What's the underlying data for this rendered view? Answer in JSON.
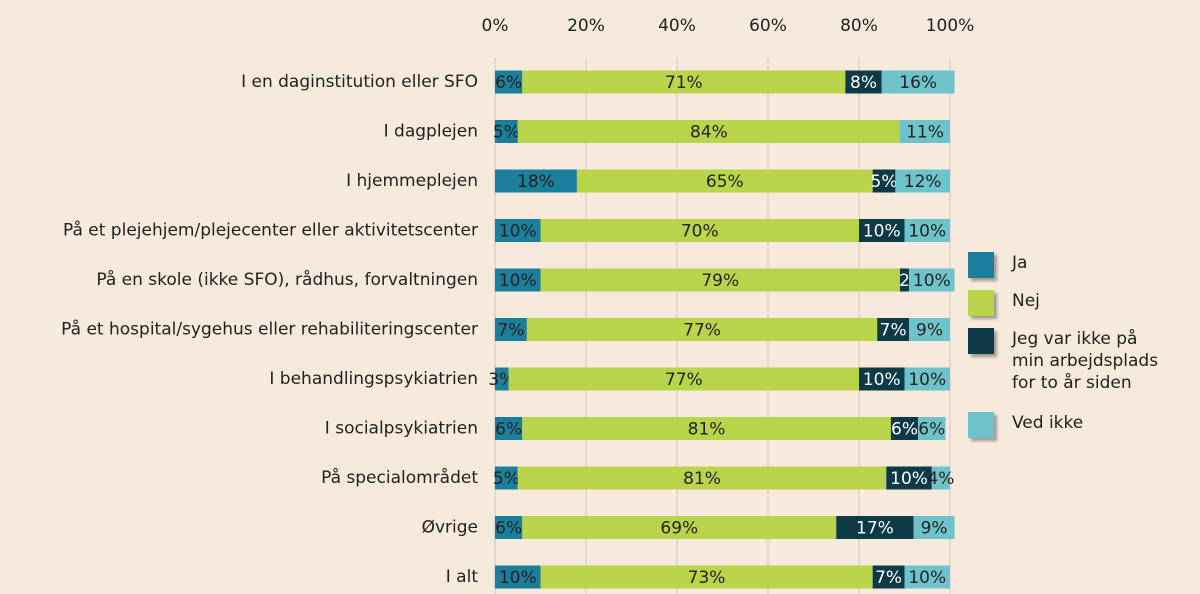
{
  "chart_data": {
    "type": "stacked_bar_horizontal",
    "categories": [
      "I en daginstitution eller SFO",
      "I dagplejen",
      "I hjemmeplejen",
      "På et plejehjem/plejecenter eller aktivitetscenter",
      "På en skole (ikke SFO), rådhus, forvaltningen",
      "På et hospital/sygehus eller rehabiliteringscenter",
      "I behandlingspsykiatrien",
      "I socialpsykiatrien",
      "På specialområdet",
      "Øvrige",
      "I alt"
    ],
    "series": [
      {
        "name": "Ja",
        "color": "#1b7e9b",
        "values": [
          6,
          5,
          18,
          10,
          10,
          7,
          3,
          6,
          5,
          6,
          10
        ],
        "value_labels": [
          "6%",
          "5%",
          "18%",
          "10%",
          "10%",
          "7%",
          "3%",
          "6%",
          "5%",
          "6%",
          "10%"
        ]
      },
      {
        "name": "Nej",
        "color": "#b9d44b",
        "values": [
          71,
          84,
          65,
          70,
          79,
          77,
          77,
          81,
          81,
          69,
          73
        ],
        "value_labels": [
          "71%",
          "84%",
          "65%",
          "70%",
          "79%",
          "77%",
          "77%",
          "81%",
          "81%",
          "69%",
          "73%"
        ]
      },
      {
        "name": "Jeg var ikke på min arbejdsplads for to år siden",
        "color": "#0e3a48",
        "values": [
          8,
          null,
          5,
          10,
          2,
          7,
          10,
          6,
          10,
          17,
          7
        ],
        "value_labels": [
          "8%",
          null,
          "5%",
          "10%",
          "2",
          "7%",
          "10%",
          "6%",
          "10%",
          "17%",
          "7%"
        ]
      },
      {
        "name": "Ved ikke",
        "color": "#6ec3cb",
        "values": [
          16,
          11,
          12,
          10,
          10,
          9,
          10,
          6,
          4,
          9,
          10
        ],
        "value_labels": [
          "16%",
          "11%",
          "12%",
          "10%",
          "10%",
          "9%",
          "10%",
          "6%",
          "4%",
          "9%",
          "10%"
        ]
      }
    ],
    "xlim": [
      0,
      100
    ],
    "xticks": [
      {
        "value": 0,
        "label": "0%"
      },
      {
        "value": 20,
        "label": "20%"
      },
      {
        "value": 40,
        "label": "40%"
      },
      {
        "value": 60,
        "label": "60%"
      },
      {
        "value": 80,
        "label": "80%"
      },
      {
        "value": 100,
        "label": "100%"
      }
    ],
    "grid": true,
    "legend": "right"
  }
}
